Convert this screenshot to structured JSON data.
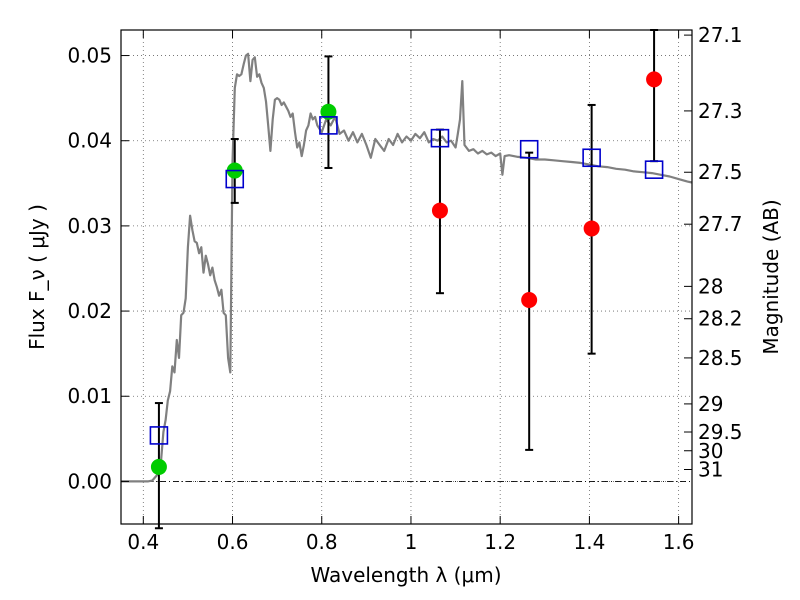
{
  "chart_data": {
    "type": "scatter",
    "title": "",
    "xlabel": "Wavelength  λ (μm)",
    "ylabel": "Flux  F_ν  ( μJy )",
    "ylabel_right": "Magnitude (AB)",
    "xlim": [
      0.35,
      1.63
    ],
    "ylim": [
      -0.005,
      0.053
    ],
    "grid": true,
    "legend": "none",
    "x_ticks": [
      {
        "value": 0.4,
        "label": "0.4"
      },
      {
        "value": 0.6,
        "label": "0.6"
      },
      {
        "value": 0.8,
        "label": "0.8"
      },
      {
        "value": 1.0,
        "label": "1"
      },
      {
        "value": 1.2,
        "label": "1.2"
      },
      {
        "value": 1.4,
        "label": "1.4"
      },
      {
        "value": 1.6,
        "label": "1.6"
      }
    ],
    "y_ticks": [
      {
        "value": 0.0,
        "label": "0.00"
      },
      {
        "value": 0.01,
        "label": "0.01"
      },
      {
        "value": 0.02,
        "label": "0.02"
      },
      {
        "value": 0.03,
        "label": "0.03"
      },
      {
        "value": 0.04,
        "label": "0.04"
      },
      {
        "value": 0.05,
        "label": "0.05"
      }
    ],
    "mag_ticks": [
      {
        "label": "27.1",
        "flux": 0.0524
      },
      {
        "label": "27.3",
        "flux": 0.0435
      },
      {
        "label": "27.5",
        "flux": 0.0363
      },
      {
        "label": "27.7",
        "flux": 0.0302
      },
      {
        "label": "28",
        "flux": 0.0229
      },
      {
        "label": "28.2",
        "flux": 0.0191
      },
      {
        "label": "28.5",
        "flux": 0.0145
      },
      {
        "label": "29",
        "flux": 0.0091
      },
      {
        "label": "29.5",
        "flux": 0.0058
      },
      {
        "label": "30",
        "flux": 0.0036
      },
      {
        "label": "31",
        "flux": 0.0014
      }
    ],
    "zero_line": 0.0,
    "colors": {
      "spectrum": "#808080",
      "detected": "#00cc00",
      "upper": "#ff0000",
      "model": "#0000cc",
      "errorbar": "#000000"
    },
    "spectrum": [
      [
        0.35,
        0.0
      ],
      [
        0.4,
        0.0
      ],
      [
        0.41,
        0.0
      ],
      [
        0.42,
        0.0001
      ],
      [
        0.43,
        0.0007
      ],
      [
        0.435,
        0.0011
      ],
      [
        0.44,
        0.0025
      ],
      [
        0.445,
        0.0058
      ],
      [
        0.45,
        0.0072
      ],
      [
        0.455,
        0.0095
      ],
      [
        0.46,
        0.0106
      ],
      [
        0.465,
        0.0135
      ],
      [
        0.47,
        0.0128
      ],
      [
        0.475,
        0.0166
      ],
      [
        0.48,
        0.0145
      ],
      [
        0.485,
        0.0195
      ],
      [
        0.49,
        0.0198
      ],
      [
        0.495,
        0.0215
      ],
      [
        0.5,
        0.0275
      ],
      [
        0.505,
        0.0312
      ],
      [
        0.51,
        0.0295
      ],
      [
        0.515,
        0.0282
      ],
      [
        0.52,
        0.028
      ],
      [
        0.525,
        0.0268
      ],
      [
        0.53,
        0.0275
      ],
      [
        0.535,
        0.0245
      ],
      [
        0.54,
        0.0265
      ],
      [
        0.545,
        0.0255
      ],
      [
        0.55,
        0.0242
      ],
      [
        0.555,
        0.0251
      ],
      [
        0.56,
        0.0236
      ],
      [
        0.565,
        0.0228
      ],
      [
        0.57,
        0.0218
      ],
      [
        0.575,
        0.0225
      ],
      [
        0.58,
        0.0198
      ],
      [
        0.585,
        0.0195
      ],
      [
        0.59,
        0.0145
      ],
      [
        0.595,
        0.0128
      ],
      [
        0.6,
        0.0375
      ],
      [
        0.605,
        0.0462
      ],
      [
        0.61,
        0.0478
      ],
      [
        0.615,
        0.0476
      ],
      [
        0.62,
        0.0478
      ],
      [
        0.625,
        0.049
      ],
      [
        0.63,
        0.05
      ],
      [
        0.635,
        0.0502
      ],
      [
        0.64,
        0.047
      ],
      [
        0.645,
        0.0495
      ],
      [
        0.65,
        0.0498
      ],
      [
        0.655,
        0.0475
      ],
      [
        0.66,
        0.0478
      ],
      [
        0.665,
        0.0468
      ],
      [
        0.67,
        0.0462
      ],
      [
        0.675,
        0.0446
      ],
      [
        0.68,
        0.0418
      ],
      [
        0.685,
        0.0388
      ],
      [
        0.69,
        0.0425
      ],
      [
        0.695,
        0.0448
      ],
      [
        0.7,
        0.045
      ],
      [
        0.705,
        0.0448
      ],
      [
        0.71,
        0.0442
      ],
      [
        0.715,
        0.0445
      ],
      [
        0.72,
        0.044
      ],
      [
        0.725,
        0.0435
      ],
      [
        0.73,
        0.0428
      ],
      [
        0.735,
        0.0432
      ],
      [
        0.74,
        0.041
      ],
      [
        0.745,
        0.0392
      ],
      [
        0.75,
        0.0398
      ],
      [
        0.755,
        0.0382
      ],
      [
        0.76,
        0.0395
      ],
      [
        0.765,
        0.0412
      ],
      [
        0.77,
        0.0418
      ],
      [
        0.775,
        0.0432
      ],
      [
        0.78,
        0.0425
      ],
      [
        0.785,
        0.0428
      ],
      [
        0.79,
        0.0418
      ],
      [
        0.8,
        0.041
      ],
      [
        0.81,
        0.0425
      ],
      [
        0.82,
        0.0418
      ],
      [
        0.83,
        0.0428
      ],
      [
        0.84,
        0.0408
      ],
      [
        0.85,
        0.0412
      ],
      [
        0.86,
        0.04
      ],
      [
        0.87,
        0.041
      ],
      [
        0.88,
        0.0398
      ],
      [
        0.89,
        0.0408
      ],
      [
        0.9,
        0.0395
      ],
      [
        0.91,
        0.038
      ],
      [
        0.92,
        0.0402
      ],
      [
        0.93,
        0.0395
      ],
      [
        0.94,
        0.0388
      ],
      [
        0.95,
        0.0402
      ],
      [
        0.96,
        0.0395
      ],
      [
        0.97,
        0.0408
      ],
      [
        0.98,
        0.0398
      ],
      [
        0.99,
        0.0405
      ],
      [
        1.0,
        0.04
      ],
      [
        1.01,
        0.0408
      ],
      [
        1.02,
        0.0403
      ],
      [
        1.03,
        0.041
      ],
      [
        1.04,
        0.0398
      ],
      [
        1.05,
        0.0402
      ],
      [
        1.06,
        0.04
      ],
      [
        1.07,
        0.0405
      ],
      [
        1.08,
        0.0398
      ],
      [
        1.09,
        0.04
      ],
      [
        1.1,
        0.0392
      ],
      [
        1.105,
        0.0408
      ],
      [
        1.11,
        0.0425
      ],
      [
        1.115,
        0.047
      ],
      [
        1.12,
        0.0395
      ],
      [
        1.13,
        0.0388
      ],
      [
        1.14,
        0.039
      ],
      [
        1.15,
        0.0385
      ],
      [
        1.16,
        0.0388
      ],
      [
        1.17,
        0.0384
      ],
      [
        1.18,
        0.0386
      ],
      [
        1.19,
        0.0382
      ],
      [
        1.2,
        0.0385
      ],
      [
        1.205,
        0.036
      ],
      [
        1.21,
        0.0382
      ],
      [
        1.22,
        0.0383
      ],
      [
        1.24,
        0.0381
      ],
      [
        1.26,
        0.038
      ],
      [
        1.28,
        0.0378
      ],
      [
        1.3,
        0.0378
      ],
      [
        1.32,
        0.0377
      ],
      [
        1.34,
        0.0376
      ],
      [
        1.36,
        0.0375
      ],
      [
        1.38,
        0.0374
      ],
      [
        1.4,
        0.0372
      ],
      [
        1.42,
        0.037
      ],
      [
        1.44,
        0.0369
      ],
      [
        1.46,
        0.0367
      ],
      [
        1.48,
        0.0366
      ],
      [
        1.5,
        0.0364
      ],
      [
        1.52,
        0.0363
      ],
      [
        1.54,
        0.0362
      ],
      [
        1.56,
        0.036
      ],
      [
        1.58,
        0.0358
      ],
      [
        1.6,
        0.0355
      ],
      [
        1.62,
        0.0352
      ],
      [
        1.63,
        0.0351
      ]
    ],
    "series": [
      {
        "kind": "detected",
        "x": [
          0.435,
          0.605,
          0.815
        ],
        "y": [
          0.0017,
          0.0365,
          0.0434
        ],
        "err": [
          [
            0.0,
            0.0
          ],
          [
            0.0327,
            0.0402
          ],
          [
            0.0368,
            0.0499
          ]
        ]
      },
      {
        "kind": "upper",
        "x": [
          1.065,
          1.265,
          1.405,
          1.545
        ],
        "y": [
          0.0318,
          0.0213,
          0.0297,
          0.0472
        ],
        "err": [
          [
            0.0221,
            0.0413
          ],
          [
            0.0037,
            0.0386
          ],
          [
            0.015,
            0.0442
          ],
          [
            0.0376,
            0.053
          ]
        ]
      },
      {
        "kind": "model",
        "x": [
          0.435,
          0.605,
          0.815,
          1.065,
          1.265,
          1.405,
          1.545
        ],
        "y": [
          0.0054,
          0.0355,
          0.0418,
          0.0403,
          0.039,
          0.038,
          0.0366
        ]
      }
    ],
    "standalone_errorbars": [
      {
        "x": 0.435,
        "low": -0.0055,
        "high": 0.0092
      }
    ]
  }
}
